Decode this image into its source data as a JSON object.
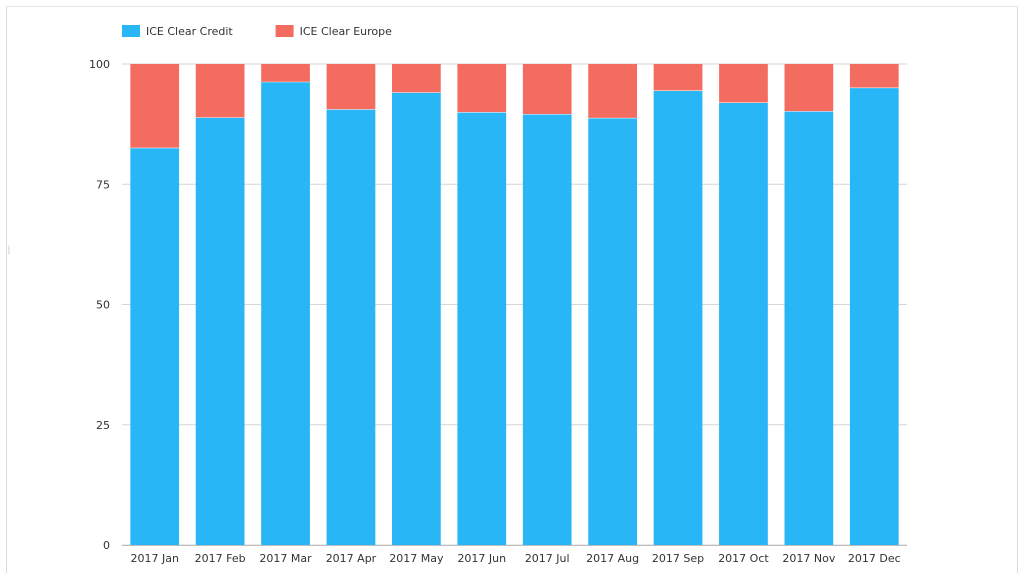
{
  "chart_data": {
    "type": "bar",
    "stacked": true,
    "categories": [
      "2017 Jan",
      "2017 Feb",
      "2017 Mar",
      "2017 Apr",
      "2017 May",
      "2017 Jun",
      "2017 Jul",
      "2017 Aug",
      "2017 Sep",
      "2017 Oct",
      "2017 Nov",
      "2017 Dec"
    ],
    "series": [
      {
        "name": "ICE Clear Credit",
        "color": "#29b6f6",
        "values": [
          82.6,
          88.9,
          96.3,
          90.6,
          94.1,
          90.0,
          89.6,
          88.8,
          94.5,
          92.0,
          90.2,
          95.1
        ]
      },
      {
        "name": "ICE Clear Europe",
        "color": "#f46c5f",
        "values": [
          17.4,
          11.1,
          3.7,
          9.4,
          5.9,
          10.0,
          10.4,
          11.2,
          5.5,
          8.0,
          9.8,
          4.9
        ]
      }
    ],
    "title": "",
    "xlabel": "",
    "ylabel": "",
    "ylim": [
      0,
      100
    ],
    "yticks": [
      "0",
      "25",
      "50",
      "75",
      "100"
    ],
    "grid": true,
    "legend_position": "top-left"
  }
}
